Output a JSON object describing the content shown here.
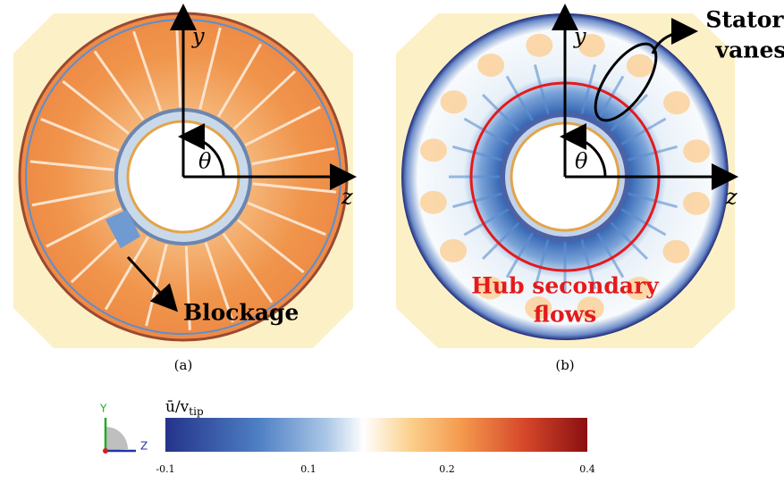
{
  "panels": [
    {
      "caption": "(a)",
      "axis_y": "y",
      "axis_z": "z",
      "angle": "θ",
      "annotation": "Blockage"
    },
    {
      "caption": "(b)",
      "axis_y": "y",
      "axis_z": "z",
      "angle": "θ",
      "callouts": [
        [
          "Stator",
          "vanes"
        ],
        [
          "Hub secondary",
          "flows"
        ]
      ]
    }
  ],
  "colorbar": {
    "label": "ū/v",
    "label_sub": "tip",
    "ticks": [
      "-0.1",
      "0.1",
      "0.2",
      "0.4"
    ]
  },
  "triad": {
    "y": "Y",
    "z": "Z"
  }
}
